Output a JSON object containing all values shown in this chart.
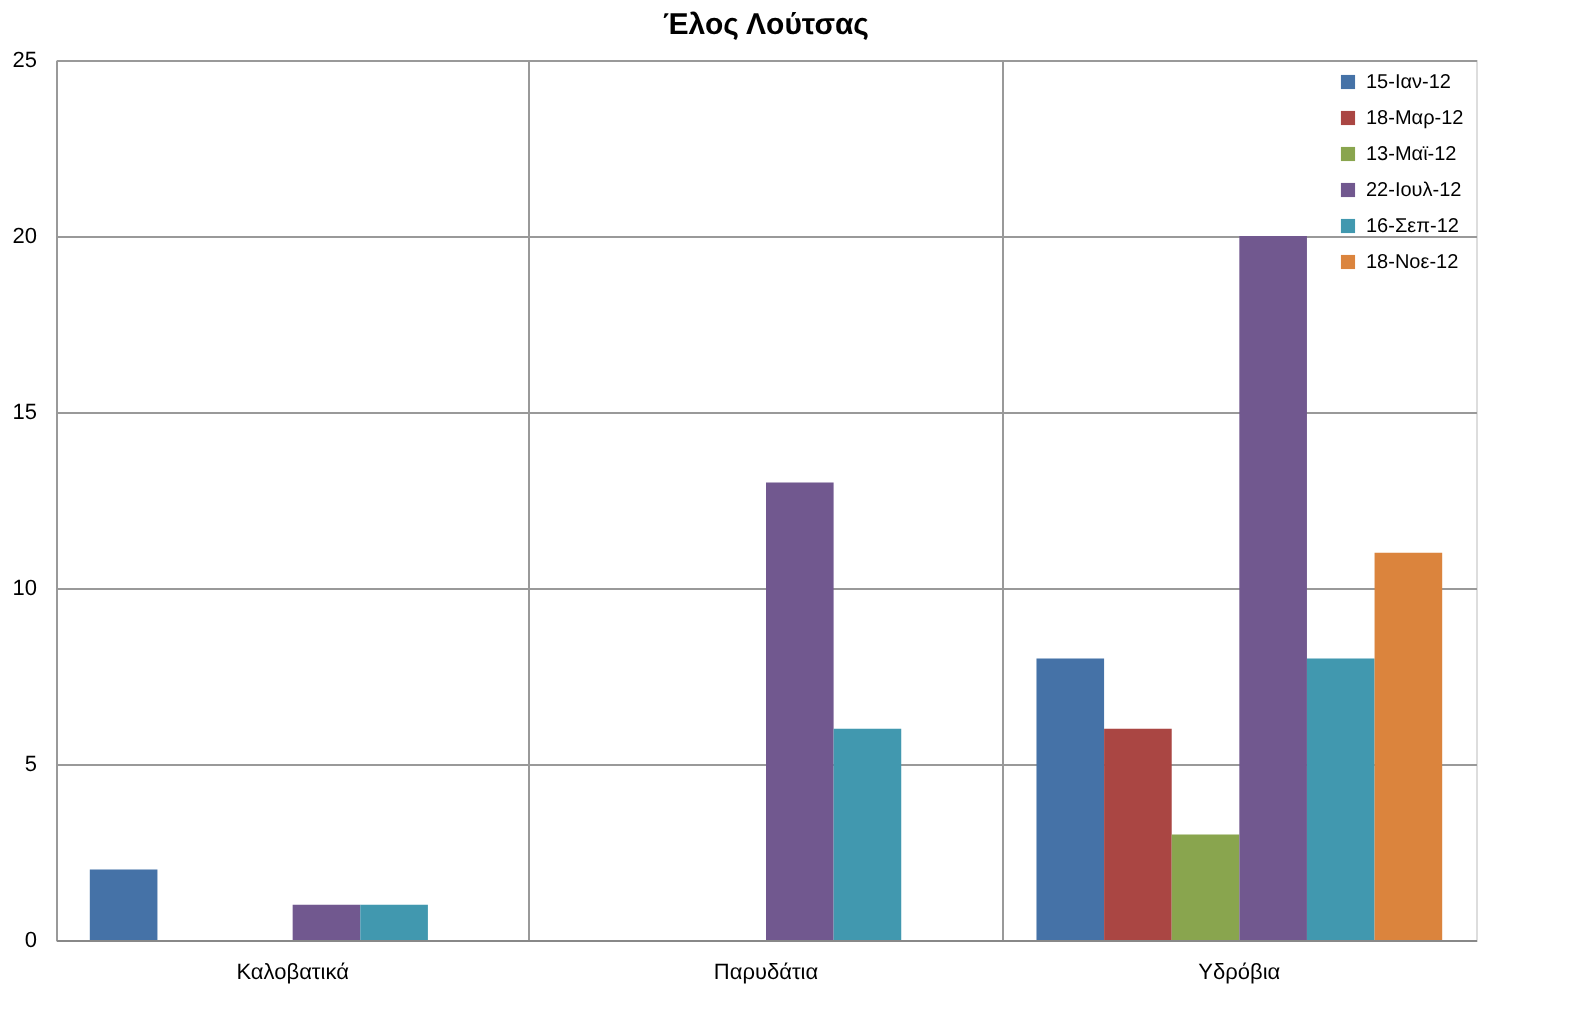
{
  "chart_data": {
    "type": "bar",
    "title": "Έλος Λούτσας",
    "categories": [
      "Καλοβατικά",
      "Παρυδάτια",
      "Υδρόβια"
    ],
    "series": [
      {
        "name": "15-Ιαν-12",
        "color": "#4572a7",
        "values": [
          2,
          0,
          8
        ]
      },
      {
        "name": "18-Μαρ-12",
        "color": "#aa4643",
        "values": [
          0,
          0,
          6
        ]
      },
      {
        "name": "13-Μαϊ-12",
        "color": "#89a54e",
        "values": [
          0,
          0,
          3
        ]
      },
      {
        "name": "22-Ιουλ-12",
        "color": "#71588f",
        "values": [
          1,
          13,
          20
        ]
      },
      {
        "name": "16-Σεπ-12",
        "color": "#4198af",
        "values": [
          1,
          6,
          8
        ]
      },
      {
        "name": "18-Νοε-12",
        "color": "#db843d",
        "values": [
          0,
          0,
          11
        ]
      }
    ],
    "ylim": [
      0,
      25
    ],
    "yticks": [
      0,
      5,
      10,
      15,
      20,
      25
    ],
    "grid": true,
    "legend": "top right"
  }
}
